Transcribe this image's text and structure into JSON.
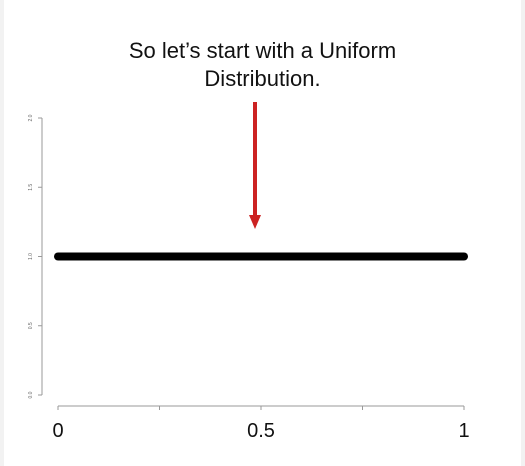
{
  "caption": {
    "line1": "So let’s start with a Uniform",
    "line2": "Distribution."
  },
  "colors": {
    "series": "#000000",
    "arrow": "#cc2222",
    "axis": "#999999"
  },
  "chart_data": {
    "type": "line",
    "title": "",
    "xlabel": "",
    "ylabel": "",
    "xlim": [
      0,
      1
    ],
    "ylim": [
      0,
      2
    ],
    "grid": false,
    "x_ticks": [
      0,
      0.25,
      0.5,
      0.75,
      1
    ],
    "x_tick_labels": [
      "0",
      "",
      "0.5",
      "",
      "1"
    ],
    "y_ticks": [
      0,
      0.5,
      1,
      1.5,
      2
    ],
    "y_tick_labels": [
      "0.0",
      "0.5",
      "1.0",
      "1.5",
      "2.0"
    ],
    "series": [
      {
        "x": [
          0,
          1
        ],
        "y": [
          1,
          1
        ]
      }
    ]
  }
}
